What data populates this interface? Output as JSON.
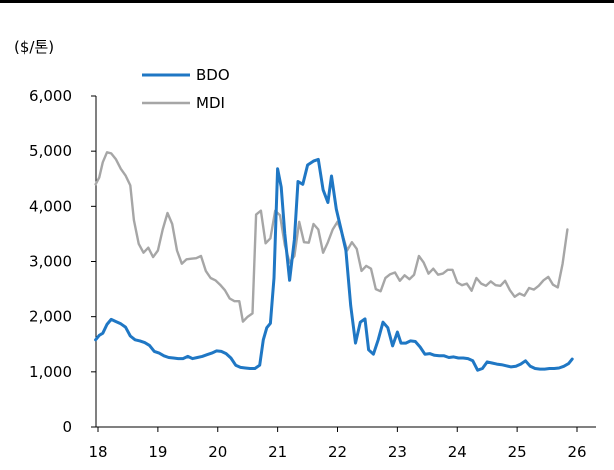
{
  "chart_data": {
    "type": "line",
    "unit_label": "($/톤)",
    "y_ticks": [
      0,
      1000,
      2000,
      3000,
      4000,
      5000,
      6000
    ],
    "y_tick_labels": [
      "0",
      "1,000",
      "2,000",
      "3,000",
      "4,000",
      "5,000",
      "6,000"
    ],
    "x_ticks": [
      2018,
      2019,
      2020,
      2021,
      2022,
      2023,
      2024,
      2025,
      2026
    ],
    "x_tick_labels": [
      "18",
      "19",
      "20",
      "21",
      "22",
      "23",
      "24",
      "25",
      "26"
    ],
    "xlim": [
      2018,
      2026.3
    ],
    "ylim": [
      0,
      6000
    ],
    "legend_position": "top-left",
    "grid": false,
    "series": [
      {
        "name": "BDO",
        "color": "#1f77c4",
        "points": [
          [
            2017.96,
            1580
          ],
          [
            2018.02,
            1660
          ],
          [
            2018.08,
            1700
          ],
          [
            2018.15,
            1860
          ],
          [
            2018.22,
            1950
          ],
          [
            2018.3,
            1910
          ],
          [
            2018.38,
            1870
          ],
          [
            2018.46,
            1810
          ],
          [
            2018.54,
            1650
          ],
          [
            2018.62,
            1580
          ],
          [
            2018.7,
            1560
          ],
          [
            2018.78,
            1530
          ],
          [
            2018.86,
            1480
          ],
          [
            2018.94,
            1370
          ],
          [
            2019.02,
            1340
          ],
          [
            2019.1,
            1290
          ],
          [
            2019.18,
            1260
          ],
          [
            2019.26,
            1250
          ],
          [
            2019.34,
            1240
          ],
          [
            2019.42,
            1240
          ],
          [
            2019.5,
            1280
          ],
          [
            2019.58,
            1240
          ],
          [
            2019.66,
            1260
          ],
          [
            2019.74,
            1280
          ],
          [
            2019.82,
            1310
          ],
          [
            2019.9,
            1340
          ],
          [
            2019.98,
            1380
          ],
          [
            2020.06,
            1370
          ],
          [
            2020.14,
            1330
          ],
          [
            2020.22,
            1250
          ],
          [
            2020.3,
            1120
          ],
          [
            2020.38,
            1080
          ],
          [
            2020.46,
            1070
          ],
          [
            2020.54,
            1060
          ],
          [
            2020.62,
            1060
          ],
          [
            2020.7,
            1120
          ],
          [
            2020.76,
            1580
          ],
          [
            2020.82,
            1800
          ],
          [
            2020.88,
            1880
          ],
          [
            2020.94,
            2700
          ],
          [
            2021.0,
            4680
          ],
          [
            2021.06,
            4350
          ],
          [
            2021.12,
            3500
          ],
          [
            2021.2,
            2660
          ],
          [
            2021.28,
            3400
          ],
          [
            2021.34,
            4450
          ],
          [
            2021.42,
            4400
          ],
          [
            2021.5,
            4750
          ],
          [
            2021.6,
            4820
          ],
          [
            2021.68,
            4850
          ],
          [
            2021.76,
            4300
          ],
          [
            2021.84,
            4070
          ],
          [
            2021.9,
            4550
          ],
          [
            2021.98,
            3950
          ],
          [
            2022.06,
            3580
          ],
          [
            2022.14,
            3200
          ],
          [
            2022.22,
            2200
          ],
          [
            2022.3,
            1520
          ],
          [
            2022.38,
            1900
          ],
          [
            2022.46,
            1960
          ],
          [
            2022.52,
            1400
          ],
          [
            2022.6,
            1320
          ],
          [
            2022.68,
            1580
          ],
          [
            2022.76,
            1900
          ],
          [
            2022.84,
            1800
          ],
          [
            2022.92,
            1470
          ],
          [
            2023.0,
            1720
          ],
          [
            2023.06,
            1520
          ],
          [
            2023.14,
            1520
          ],
          [
            2023.22,
            1560
          ],
          [
            2023.3,
            1550
          ],
          [
            2023.38,
            1450
          ],
          [
            2023.46,
            1320
          ],
          [
            2023.54,
            1330
          ],
          [
            2023.62,
            1300
          ],
          [
            2023.7,
            1290
          ],
          [
            2023.78,
            1290
          ],
          [
            2023.86,
            1260
          ],
          [
            2023.94,
            1270
          ],
          [
            2024.02,
            1250
          ],
          [
            2024.1,
            1250
          ],
          [
            2024.18,
            1240
          ],
          [
            2024.26,
            1200
          ],
          [
            2024.34,
            1030
          ],
          [
            2024.42,
            1060
          ],
          [
            2024.5,
            1180
          ],
          [
            2024.58,
            1160
          ],
          [
            2024.66,
            1140
          ],
          [
            2024.74,
            1130
          ],
          [
            2024.82,
            1110
          ],
          [
            2024.9,
            1090
          ],
          [
            2024.98,
            1100
          ],
          [
            2025.06,
            1140
          ],
          [
            2025.14,
            1200
          ],
          [
            2025.22,
            1100
          ],
          [
            2025.3,
            1060
          ],
          [
            2025.38,
            1050
          ],
          [
            2025.46,
            1050
          ],
          [
            2025.54,
            1060
          ],
          [
            2025.62,
            1060
          ],
          [
            2025.7,
            1070
          ],
          [
            2025.78,
            1100
          ],
          [
            2025.86,
            1150
          ],
          [
            2025.92,
            1230
          ]
        ]
      },
      {
        "name": "MDI",
        "color": "#a6a6a6",
        "points": [
          [
            2017.96,
            4400
          ],
          [
            2018.02,
            4520
          ],
          [
            2018.08,
            4800
          ],
          [
            2018.15,
            4980
          ],
          [
            2018.22,
            4960
          ],
          [
            2018.3,
            4850
          ],
          [
            2018.38,
            4680
          ],
          [
            2018.46,
            4560
          ],
          [
            2018.54,
            4380
          ],
          [
            2018.6,
            3750
          ],
          [
            2018.68,
            3320
          ],
          [
            2018.76,
            3160
          ],
          [
            2018.84,
            3250
          ],
          [
            2018.92,
            3080
          ],
          [
            2019.0,
            3200
          ],
          [
            2019.08,
            3580
          ],
          [
            2019.16,
            3880
          ],
          [
            2019.24,
            3680
          ],
          [
            2019.32,
            3200
          ],
          [
            2019.4,
            2960
          ],
          [
            2019.48,
            3040
          ],
          [
            2019.56,
            3050
          ],
          [
            2019.64,
            3060
          ],
          [
            2019.72,
            3100
          ],
          [
            2019.8,
            2830
          ],
          [
            2019.88,
            2700
          ],
          [
            2019.96,
            2660
          ],
          [
            2020.04,
            2580
          ],
          [
            2020.12,
            2480
          ],
          [
            2020.2,
            2330
          ],
          [
            2020.28,
            2280
          ],
          [
            2020.36,
            2280
          ],
          [
            2020.42,
            1910
          ],
          [
            2020.5,
            2000
          ],
          [
            2020.58,
            2060
          ],
          [
            2020.64,
            3850
          ],
          [
            2020.72,
            3920
          ],
          [
            2020.8,
            3330
          ],
          [
            2020.88,
            3420
          ],
          [
            2020.96,
            3920
          ],
          [
            2021.04,
            3840
          ],
          [
            2021.12,
            3300
          ],
          [
            2021.2,
            2980
          ],
          [
            2021.28,
            3100
          ],
          [
            2021.36,
            3720
          ],
          [
            2021.44,
            3350
          ],
          [
            2021.52,
            3340
          ],
          [
            2021.6,
            3680
          ],
          [
            2021.68,
            3580
          ],
          [
            2021.76,
            3160
          ],
          [
            2021.84,
            3350
          ],
          [
            2021.92,
            3580
          ],
          [
            2022.0,
            3720
          ],
          [
            2022.08,
            3500
          ],
          [
            2022.16,
            3200
          ],
          [
            2022.24,
            3350
          ],
          [
            2022.32,
            3230
          ],
          [
            2022.4,
            2830
          ],
          [
            2022.48,
            2920
          ],
          [
            2022.56,
            2870
          ],
          [
            2022.64,
            2500
          ],
          [
            2022.72,
            2460
          ],
          [
            2022.8,
            2700
          ],
          [
            2022.88,
            2770
          ],
          [
            2022.96,
            2800
          ],
          [
            2023.04,
            2650
          ],
          [
            2023.12,
            2750
          ],
          [
            2023.2,
            2680
          ],
          [
            2023.28,
            2760
          ],
          [
            2023.36,
            3100
          ],
          [
            2023.44,
            2980
          ],
          [
            2023.52,
            2780
          ],
          [
            2023.6,
            2870
          ],
          [
            2023.68,
            2760
          ],
          [
            2023.76,
            2780
          ],
          [
            2023.84,
            2850
          ],
          [
            2023.92,
            2850
          ],
          [
            2024.0,
            2620
          ],
          [
            2024.08,
            2570
          ],
          [
            2024.16,
            2600
          ],
          [
            2024.24,
            2470
          ],
          [
            2024.32,
            2700
          ],
          [
            2024.4,
            2600
          ],
          [
            2024.48,
            2560
          ],
          [
            2024.56,
            2640
          ],
          [
            2024.64,
            2570
          ],
          [
            2024.72,
            2560
          ],
          [
            2024.8,
            2650
          ],
          [
            2024.88,
            2480
          ],
          [
            2024.96,
            2360
          ],
          [
            2025.04,
            2420
          ],
          [
            2025.12,
            2380
          ],
          [
            2025.2,
            2520
          ],
          [
            2025.28,
            2490
          ],
          [
            2025.36,
            2560
          ],
          [
            2025.44,
            2660
          ],
          [
            2025.52,
            2720
          ],
          [
            2025.6,
            2580
          ],
          [
            2025.68,
            2530
          ],
          [
            2025.76,
            2960
          ],
          [
            2025.84,
            3580
          ]
        ]
      }
    ]
  }
}
